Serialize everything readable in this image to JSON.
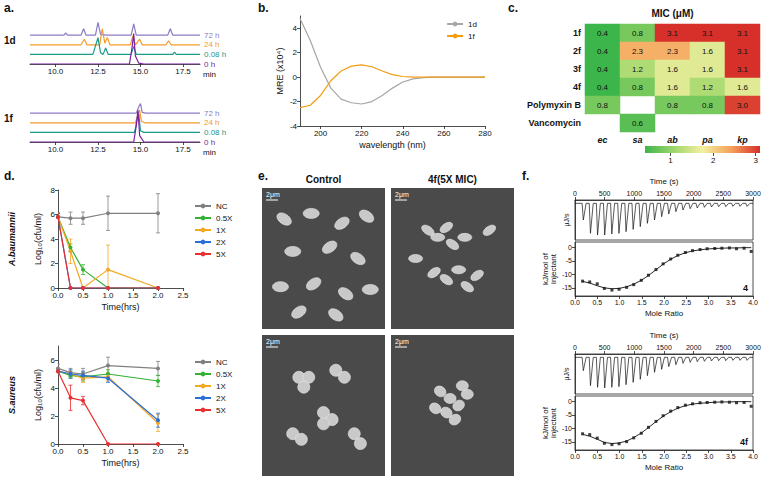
{
  "chart_data": [
    {
      "panel": "a.",
      "type": "line",
      "title": "1d",
      "x_label": "min",
      "xlim": [
        8.5,
        18.5
      ],
      "xticks": [
        {
          "value": 10,
          "label": "10.0"
        },
        12.5,
        {
          "value": 15,
          "label": "15.0"
        },
        17.5
      ],
      "ylim": [
        0,
        60
      ],
      "tick_labels": "x",
      "series": [
        {
          "name": "72 h",
          "color": "#8e7cc3",
          "x": [
            8.5,
            10.5,
            10.6,
            10.7,
            11.5,
            11.65,
            11.8,
            12.35,
            12.5,
            12.65,
            13.0,
            14.45,
            14.6,
            14.75,
            16.6,
            16.75,
            16.9,
            18.5
          ],
          "values": [
            36,
            36,
            39,
            36,
            36,
            44,
            36,
            36,
            52,
            37,
            36,
            36,
            50,
            36,
            36,
            44,
            36,
            36
          ]
        },
        {
          "name": "24 h",
          "color": "#f39c2b",
          "x": [
            8.5,
            11.5,
            11.7,
            11.85,
            12.6,
            12.75,
            12.9,
            13.05,
            13.2,
            14.4,
            14.55,
            14.7,
            14.95,
            15.1,
            16.5,
            16.65,
            16.8,
            18.5
          ],
          "values": [
            24,
            24,
            31,
            24,
            24,
            44,
            26,
            33,
            24,
            24,
            35,
            24,
            31,
            24,
            24,
            29,
            24,
            24
          ]
        },
        {
          "name": "0.08 h",
          "color": "#1a9a8a",
          "x": [
            8.5,
            12.2,
            12.4,
            12.5,
            12.65,
            12.8,
            12.95,
            13.1,
            14.45,
            14.6,
            14.75,
            16.9,
            17.0,
            17.1,
            18.5
          ],
          "values": [
            12,
            12,
            26,
            33,
            14,
            12,
            20,
            12,
            12,
            22,
            12,
            12,
            15,
            12,
            12
          ]
        },
        {
          "name": "0 h",
          "color": "#7b1fa2",
          "x": [
            8.5,
            14.35,
            14.5,
            14.6,
            14.7,
            14.9,
            15.2,
            18.5
          ],
          "values": [
            0,
            0,
            20,
            38,
            10,
            1,
            0,
            0
          ]
        }
      ]
    },
    {
      "panel": "a.",
      "type": "line",
      "title": "1f",
      "x_label": "min",
      "xlim": [
        8.5,
        18.5
      ],
      "xticks": [
        {
          "value": 10,
          "label": "10.0"
        },
        12.5,
        {
          "value": 15,
          "label": "15.0"
        },
        17.5
      ],
      "ylim": [
        0,
        60
      ],
      "tick_labels": "x",
      "series": [
        {
          "name": "72 h",
          "color": "#8e7cc3",
          "x": [
            8.5,
            14.75,
            14.9,
            15.0,
            15.1,
            15.3,
            18.5
          ],
          "values": [
            36,
            36,
            44,
            48,
            37,
            36,
            36
          ]
        },
        {
          "name": "24 h",
          "color": "#f39c2b",
          "x": [
            8.5,
            14.7,
            14.85,
            14.95,
            15.05,
            15.25,
            18.5
          ],
          "values": [
            24,
            24,
            34,
            40,
            26,
            24,
            24
          ]
        },
        {
          "name": "0.08 h",
          "color": "#1a9a8a",
          "x": [
            8.5,
            14.65,
            14.8,
            14.9,
            15.0,
            15.2,
            18.5
          ],
          "values": [
            12,
            12,
            28,
            35,
            14,
            12,
            12
          ]
        },
        {
          "name": "0 h",
          "color": "#7b1fa2",
          "x": [
            8.5,
            14.6,
            14.75,
            14.85,
            14.95,
            15.2,
            18.5
          ],
          "values": [
            0,
            0,
            20,
            40,
            8,
            0,
            0
          ]
        }
      ]
    },
    {
      "panel": "b.",
      "type": "line",
      "x_label": "wavelength (nm)",
      "y_label": "MRE (x10⁴)",
      "xlim": [
        190,
        280
      ],
      "xticks": [
        200,
        220,
        240,
        260,
        280
      ],
      "ylim": [
        -4,
        5
      ],
      "yticks": [
        -4,
        -2,
        0,
        2,
        4
      ],
      "grid": false,
      "legend": "upper right",
      "x": [
        190,
        195,
        200,
        205,
        210,
        215,
        220,
        225,
        230,
        235,
        240,
        245,
        250,
        255,
        260,
        265,
        270,
        275,
        280
      ],
      "series": [
        {
          "name": "1d",
          "color": "#a6a6a6",
          "values": [
            4.8,
            3.0,
            0.8,
            -0.9,
            -1.8,
            -2.1,
            -2.2,
            -2.0,
            -1.5,
            -0.9,
            -0.4,
            -0.15,
            -0.05,
            0,
            0,
            0,
            0,
            0,
            0
          ]
        },
        {
          "name": "1f",
          "color": "#f39c12",
          "values": [
            -2.5,
            -2.3,
            -1.5,
            -0.3,
            0.5,
            0.9,
            1.0,
            0.85,
            0.5,
            0.2,
            0.05,
            0,
            0,
            0,
            0,
            0,
            0,
            0,
            0
          ]
        }
      ]
    },
    {
      "panel": "c.",
      "type": "heatmap",
      "title": "MIC (μM)",
      "x_categories": [
        "ec",
        "sa",
        "ab",
        "pa",
        "kp"
      ],
      "y_categories": [
        "1f",
        "2f",
        "3f",
        "4f",
        "Polymyxin B",
        "Vancomycin"
      ],
      "cells": [
        [
          0.4,
          0.8,
          3.1,
          3.1,
          3.1
        ],
        [
          0.4,
          2.3,
          2.3,
          1.6,
          3.1
        ],
        [
          0.4,
          1.2,
          1.6,
          1.6,
          3.1
        ],
        [
          0.4,
          0.8,
          1.6,
          1.2,
          1.6
        ],
        [
          0.8,
          null,
          0.8,
          0.8,
          3.0
        ],
        [
          null,
          0.6,
          null,
          null,
          null
        ]
      ],
      "value_labels": [
        [
          "0.4",
          "0.8",
          "3.1",
          "3.1",
          "3.1"
        ],
        [
          "0.4",
          "2.3",
          "2.3",
          "1.6",
          "3.1"
        ],
        [
          "0.4",
          "1.2",
          "1.6",
          "1.6",
          "3.1"
        ],
        [
          "0.4",
          "0.8",
          "1.6",
          "1.2",
          "1.6"
        ],
        [
          "0.8",
          null,
          "0.8",
          "0.8",
          "3.0"
        ],
        [
          null,
          "0.6",
          null,
          null,
          null
        ]
      ],
      "data_labels": true,
      "colorbar": {
        "range": [
          0.4,
          3.1
        ],
        "ticks": [
          1,
          2,
          3
        ]
      }
    },
    {
      "panel": "d.",
      "type": "line",
      "title": "A.baumannii",
      "x_label": "Time(hrs)",
      "y_label": "Log₁₀(cfu/ml)",
      "xlim": [
        0,
        2.5
      ],
      "xticks": [
        {
          "value": 0,
          "label": "0.0"
        },
        0.5,
        {
          "value": 1,
          "label": "1.0"
        },
        1.5,
        {
          "value": 2,
          "label": "2.0"
        },
        2.5
      ],
      "ylim": [
        0,
        8
      ],
      "yticks": [
        0,
        2,
        4,
        6,
        8
      ],
      "grid": false,
      "legend": "right",
      "marker": "circle",
      "x": [
        0,
        0.25,
        0.5,
        1,
        2
      ],
      "series": [
        {
          "name": "NC",
          "color": "#808080",
          "values": [
            5.8,
            5.7,
            5.7,
            6.1,
            6.1
          ],
          "errors": [
            0.3,
            0.5,
            0.5,
            1.4,
            1.6
          ]
        },
        {
          "name": "0.5X",
          "color": "#33b233",
          "values": [
            5.8,
            3.3,
            1.5,
            0,
            0
          ],
          "errors": [
            0.3,
            0.3,
            0.4,
            0,
            0
          ]
        },
        {
          "name": "1X",
          "color": "#f5a623",
          "values": [
            5.8,
            3.0,
            0,
            1.5,
            0
          ],
          "errors": [
            0.3,
            1.0,
            0,
            2.0,
            0
          ]
        },
        {
          "name": "2X",
          "color": "#2a6fd6",
          "values": [
            5.8,
            0,
            0,
            0,
            0
          ],
          "errors": [
            0.3,
            0,
            0,
            0,
            0
          ]
        },
        {
          "name": "5X",
          "color": "#e83030",
          "values": [
            5.8,
            0,
            0,
            0,
            0
          ],
          "errors": [
            0.3,
            0,
            0,
            0,
            0
          ]
        }
      ]
    },
    {
      "panel": "d.",
      "type": "line",
      "title": "S.aureus",
      "x_label": "Time(hrs)",
      "y_label": "Log₁₀(cfu/ml)",
      "xlim": [
        0,
        2.5
      ],
      "xticks": [
        {
          "value": 0,
          "label": "0.0"
        },
        0.5,
        {
          "value": 1,
          "label": "1.0"
        },
        1.5,
        {
          "value": 2,
          "label": "2.0"
        },
        2.5
      ],
      "ylim": [
        0,
        7
      ],
      "yticks": [
        0,
        2,
        4,
        6
      ],
      "grid": false,
      "legend": "right",
      "marker": "circle",
      "x": [
        0,
        0.25,
        0.5,
        1,
        2
      ],
      "series": [
        {
          "name": "NC",
          "color": "#808080",
          "values": [
            5.4,
            5.1,
            5.0,
            5.6,
            5.4
          ],
          "errors": [
            0.3,
            0.3,
            0.4,
            0.6,
            0.5
          ]
        },
        {
          "name": "0.5X",
          "color": "#33b233",
          "values": [
            5.2,
            4.9,
            4.8,
            5.0,
            4.5
          ],
          "errors": [
            0.2,
            0.2,
            0.3,
            0.3,
            0.4
          ]
        },
        {
          "name": "1X",
          "color": "#f5a623",
          "values": [
            5.2,
            5.0,
            4.7,
            4.8,
            1.5
          ],
          "errors": [
            0.2,
            0.2,
            0.3,
            0.3,
            0.6
          ]
        },
        {
          "name": "2X",
          "color": "#2a6fd6",
          "values": [
            5.2,
            5.0,
            4.9,
            4.7,
            1.7
          ],
          "errors": [
            0.2,
            0.3,
            0.3,
            0.3,
            0.5
          ]
        },
        {
          "name": "5X",
          "color": "#e83030",
          "values": [
            5.2,
            3.3,
            3.1,
            0,
            0
          ],
          "errors": [
            0.2,
            0.9,
            0.3,
            0,
            0
          ]
        }
      ]
    },
    {
      "panel": "e.",
      "type": "image",
      "columns": [
        "Control",
        "4f(5X MIC)"
      ],
      "scale_bars": [
        "2μm",
        "2μm",
        "2μm",
        "2μm"
      ]
    },
    {
      "panel": "f.",
      "type": "itc",
      "title": "4",
      "raw": {
        "x_label": "Time (s)",
        "y_label": "μJ/s",
        "xlim": [
          0,
          3000
        ],
        "xticks": [
          0,
          500,
          1000,
          1500,
          2000,
          2500,
          3000
        ],
        "ylim": [
          -1.1,
          0.1
        ],
        "tick_labels": "x",
        "time": [
          120,
          240,
          360,
          480,
          600,
          720,
          840,
          960,
          1080,
          1200,
          1320,
          1440,
          1560,
          1680,
          1800,
          1920,
          2040,
          2160,
          2280,
          2400,
          2520,
          2640,
          2760,
          2880
        ],
        "peaks": [
          -0.5,
          -0.9,
          -0.95,
          -0.95,
          -0.92,
          -0.9,
          -0.85,
          -0.78,
          -0.7,
          -0.6,
          -0.5,
          -0.4,
          -0.32,
          -0.25,
          -0.2,
          -0.16,
          -0.14,
          -0.12,
          -0.11,
          -0.1,
          -0.1,
          -0.09,
          -0.09,
          -0.09
        ]
      },
      "integrated": {
        "x_label": "Mole Ratio",
        "y_label": "kJ/mol of injectant",
        "xlim": [
          0,
          4
        ],
        "xticks": [
          {
            "value": 0,
            "label": "0.0"
          },
          0.5,
          {
            "value": 1,
            "label": "1.0"
          },
          1.5,
          {
            "value": 2,
            "label": "2.0"
          },
          2.5,
          {
            "value": 3,
            "label": "3.0"
          },
          3.5,
          {
            "value": 4,
            "label": "4.0"
          }
        ],
        "ylim": [
          -18,
          2
        ],
        "yticks": [
          -15,
          -10,
          -5,
          0
        ],
        "x": [
          0.17,
          0.33,
          0.5,
          0.66,
          0.83,
          0.99,
          1.16,
          1.32,
          1.49,
          1.65,
          1.82,
          1.98,
          2.15,
          2.31,
          2.48,
          2.64,
          2.81,
          2.97,
          3.14,
          3.3,
          3.47,
          3.63,
          3.8,
          3.96
        ],
        "values": [
          -12.5,
          -12.8,
          -13.5,
          -15.2,
          -15.8,
          -15.5,
          -14.8,
          -13.8,
          -12.2,
          -10.3,
          -8.2,
          -6.1,
          -4.3,
          -2.9,
          -1.9,
          -1.2,
          -0.8,
          -0.5,
          -0.4,
          -0.3,
          -0.2,
          -0.5,
          -0.3,
          -1.5
        ],
        "fit": [
          -12.6,
          -13.2,
          -14.2,
          -15.0,
          -15.3,
          -15.2,
          -14.6,
          -13.6,
          -12.2,
          -10.4,
          -8.3,
          -6.2,
          -4.4,
          -3.0,
          -2.0,
          -1.3,
          -0.9,
          -0.6,
          -0.4,
          -0.3,
          -0.2,
          -0.2,
          -0.1,
          -0.1
        ]
      }
    },
    {
      "panel": "f.",
      "type": "itc",
      "title": "4f",
      "raw": {
        "x_label": "Time (s)",
        "y_label": "μJ/s",
        "xlim": [
          0,
          3000
        ],
        "xticks": [
          0,
          500,
          1000,
          1500,
          2000,
          2500,
          3000
        ],
        "ylim": [
          -1.1,
          0.1
        ],
        "tick_labels": "x",
        "time": [
          120,
          240,
          360,
          480,
          600,
          720,
          840,
          960,
          1080,
          1200,
          1320,
          1440,
          1560,
          1680,
          1800,
          1920,
          2040,
          2160,
          2280,
          2400,
          2520,
          2640,
          2760,
          2880
        ],
        "peaks": [
          -0.4,
          -0.85,
          -0.9,
          -0.92,
          -0.9,
          -0.88,
          -0.82,
          -0.75,
          -0.66,
          -0.55,
          -0.45,
          -0.36,
          -0.28,
          -0.22,
          -0.18,
          -0.15,
          -0.13,
          -0.12,
          -0.11,
          -0.1,
          -0.1,
          -0.09,
          -0.09,
          -0.09
        ]
      },
      "integrated": {
        "x_label": "Mole Ratio",
        "y_label": "kJ/mol of injectant",
        "xlim": [
          0,
          4
        ],
        "xticks": [
          {
            "value": 0,
            "label": "0.0"
          },
          0.5,
          {
            "value": 1,
            "label": "1.0"
          },
          1.5,
          {
            "value": 2,
            "label": "2.0"
          },
          2.5,
          {
            "value": 3,
            "label": "3.0"
          },
          3.5,
          {
            "value": 4,
            "label": "4.0"
          }
        ],
        "ylim": [
          -18,
          2
        ],
        "yticks": [
          -15,
          -10,
          -5,
          0
        ],
        "x": [
          0.17,
          0.33,
          0.5,
          0.66,
          0.83,
          0.99,
          1.16,
          1.32,
          1.49,
          1.65,
          1.82,
          1.98,
          2.15,
          2.31,
          2.48,
          2.64,
          2.81,
          2.97,
          3.14,
          3.3,
          3.47,
          3.63,
          3.8,
          3.96
        ],
        "values": [
          -12.0,
          -12.3,
          -13.6,
          -15.5,
          -16.0,
          -15.7,
          -14.9,
          -13.5,
          -11.8,
          -9.6,
          -7.4,
          -5.3,
          -3.6,
          -2.3,
          -1.4,
          -0.9,
          -0.5,
          -0.4,
          -0.3,
          -0.2,
          -0.3,
          -0.5,
          -0.4,
          -1.8
        ],
        "fit": [
          -12.2,
          -12.9,
          -14.0,
          -15.2,
          -15.6,
          -15.4,
          -14.7,
          -13.4,
          -11.7,
          -9.7,
          -7.5,
          -5.5,
          -3.8,
          -2.5,
          -1.6,
          -1.0,
          -0.7,
          -0.5,
          -0.3,
          -0.2,
          -0.2,
          -0.1,
          -0.1,
          -0.1
        ]
      }
    }
  ]
}
